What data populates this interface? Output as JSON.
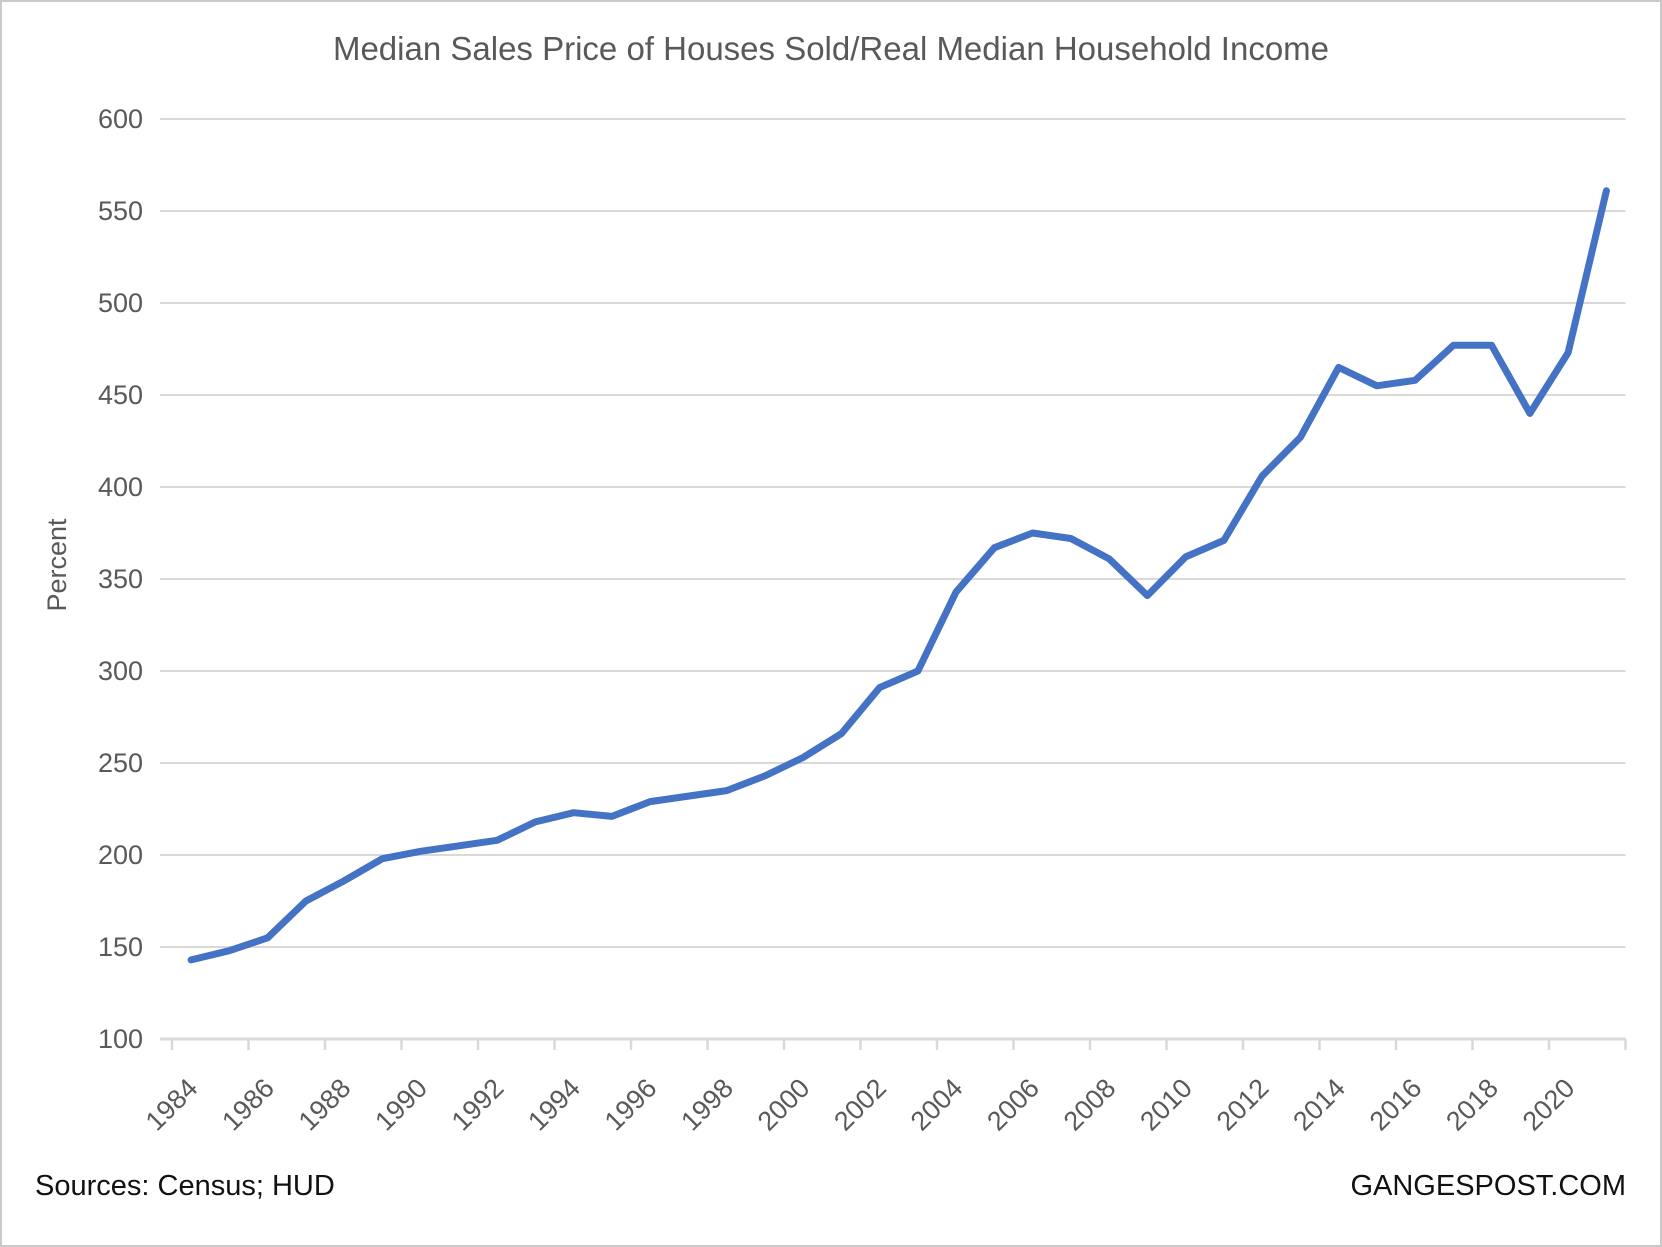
{
  "chart_data": {
    "type": "line",
    "title": "Median Sales Price of Houses Sold/Real Median Household Income",
    "ylabel": "Percent",
    "xlabel": "",
    "x": [
      1984,
      1985,
      1986,
      1987,
      1988,
      1989,
      1990,
      1991,
      1992,
      1993,
      1994,
      1995,
      1996,
      1997,
      1998,
      1999,
      2000,
      2001,
      2002,
      2003,
      2004,
      2005,
      2006,
      2007,
      2008,
      2009,
      2010,
      2011,
      2012,
      2013,
      2014,
      2015,
      2016,
      2017,
      2018,
      2019,
      2020,
      2021
    ],
    "values": [
      143,
      148,
      155,
      175,
      186,
      198,
      202,
      205,
      208,
      218,
      223,
      221,
      229,
      232,
      235,
      243,
      253,
      266,
      291,
      300,
      343,
      367,
      375,
      372,
      361,
      341,
      362,
      371,
      406,
      427,
      465,
      455,
      458,
      477,
      477,
      440,
      473,
      561
    ],
    "ylim": [
      100,
      600
    ],
    "ytick_step": 50,
    "ytick_labels": [
      "100",
      "150",
      "200",
      "250",
      "300",
      "350",
      "400",
      "450",
      "500",
      "550",
      "600"
    ],
    "xtick_labels": [
      "1984",
      "1986",
      "1988",
      "1990",
      "1992",
      "1994",
      "1996",
      "1998",
      "2000",
      "2002",
      "2004",
      "2006",
      "2008",
      "2010",
      "2012",
      "2014",
      "2016",
      "2018",
      "2020"
    ],
    "grid": true,
    "legend": "none",
    "line_color": "#4472C4",
    "grid_color": "#D9D9D9",
    "axis_color": "#D9D9D9",
    "text_color": "#595959"
  },
  "footer": {
    "sources": "Sources: Census; HUD",
    "watermark": "GANGESPOST.COM"
  }
}
